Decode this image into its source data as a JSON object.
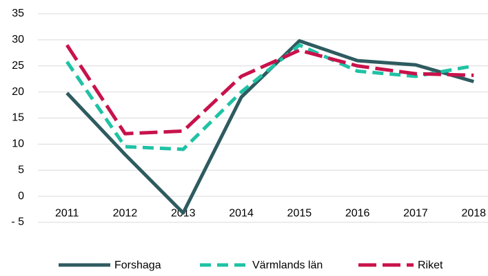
{
  "chart_data": {
    "type": "line",
    "categories": [
      "2011",
      "2012",
      "2013",
      "2014",
      "2015",
      "2016",
      "2017",
      "2018"
    ],
    "series": [
      {
        "name": "Forshaga",
        "color": "#2e5b5f",
        "values": [
          19.8,
          8,
          -3.2,
          19,
          29.8,
          26,
          25.2,
          22
        ]
      },
      {
        "name": "Värmlands län",
        "color": "#1fc2a4",
        "values": [
          25.8,
          9.5,
          9,
          20,
          29,
          24,
          23,
          25
        ]
      },
      {
        "name": "Riket",
        "color": "#c8124b",
        "values": [
          29,
          12,
          12.5,
          23,
          28,
          25,
          23.5,
          23.2
        ]
      }
    ],
    "ylim": [
      -5,
      35
    ],
    "yticks": [
      {
        "value": -5,
        "label": "- 5"
      },
      0,
      5,
      10,
      15,
      20,
      25,
      30,
      35
    ],
    "grid": true,
    "legend": "bottom"
  }
}
